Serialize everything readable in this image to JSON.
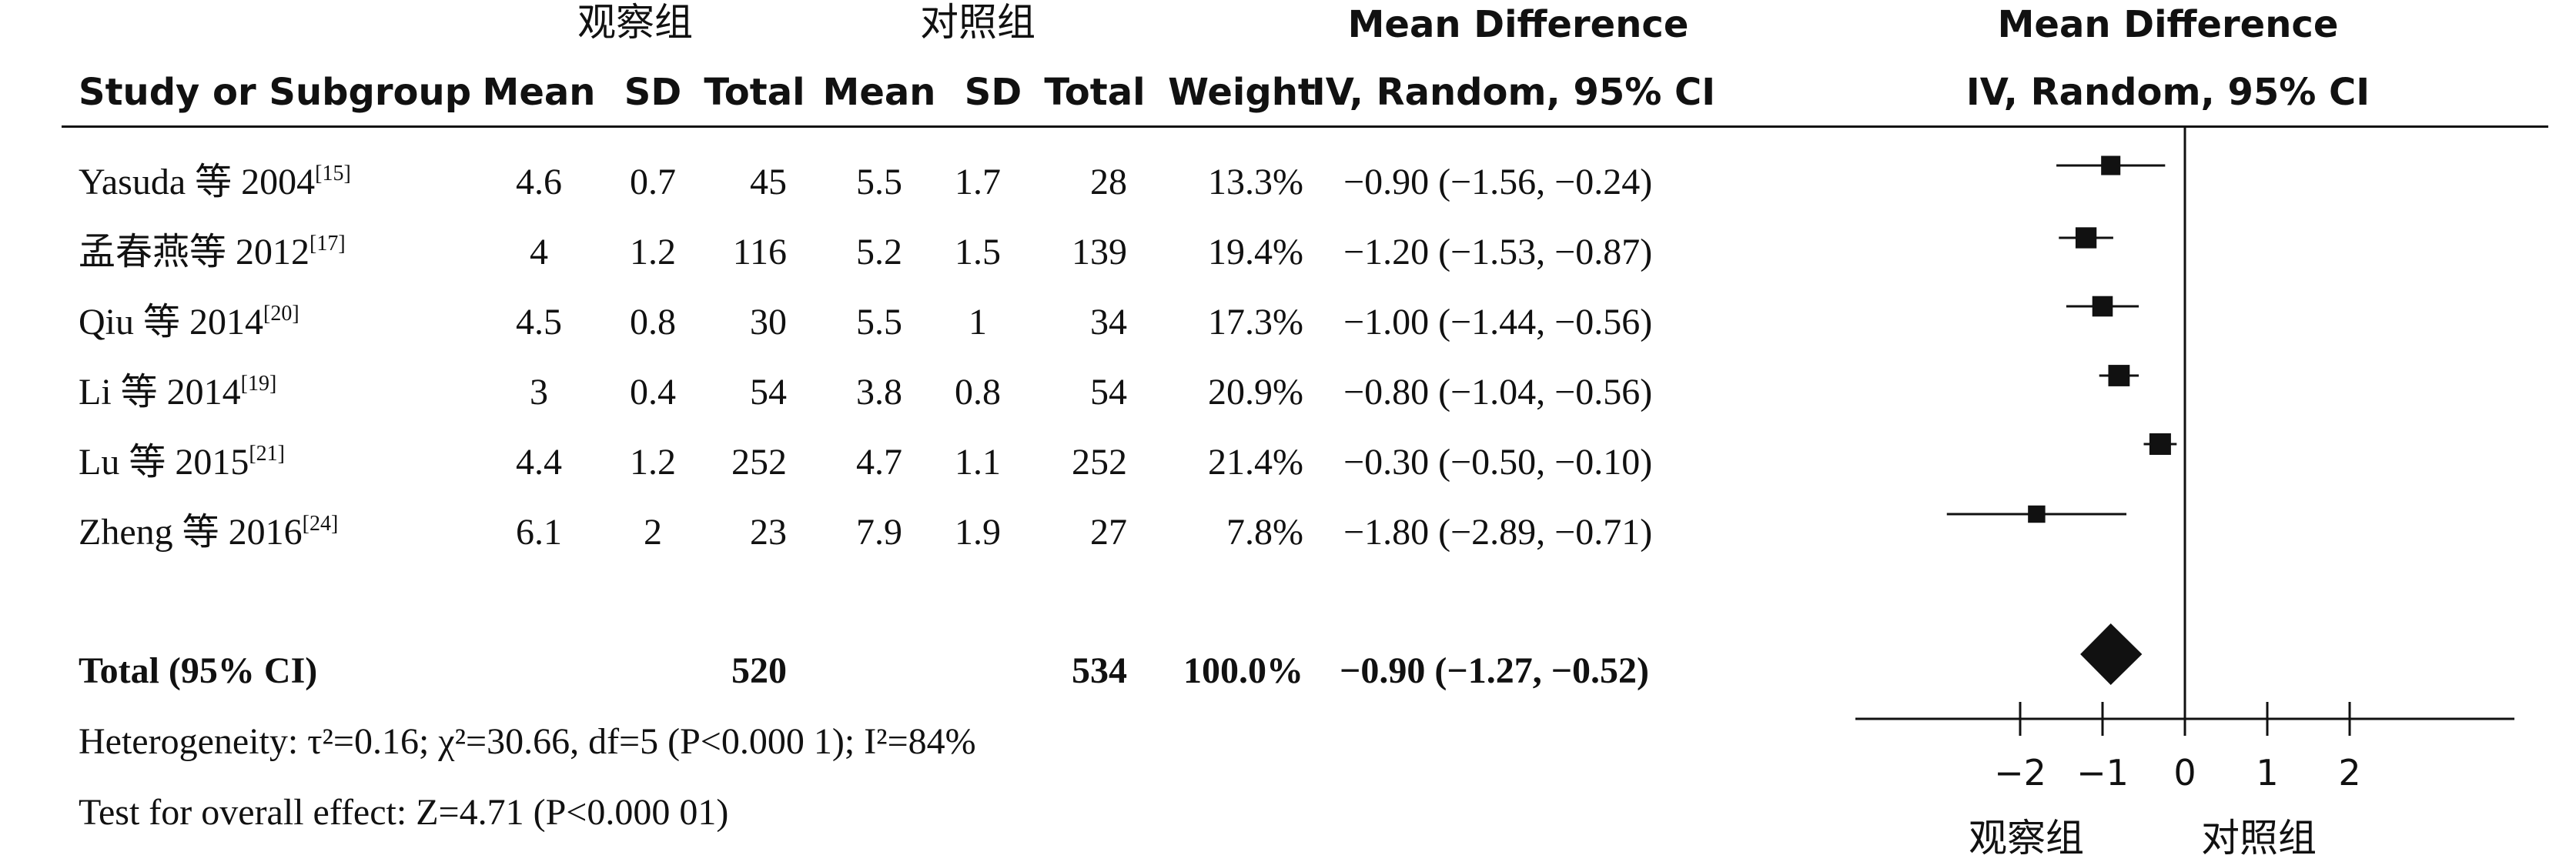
{
  "header": {
    "group1": "观察组",
    "group2": "对照组",
    "md_title": "Mean Difference",
    "plot_title": "Mean Difference",
    "study_col": "Study or Subgroup",
    "mean1": "Mean",
    "sd1": "SD",
    "total1": "Total",
    "mean2": "Mean",
    "sd2": "SD",
    "total2": "Total",
    "weight": "Weight",
    "method": "IV, Random, 95% CI",
    "plot_method": "IV, Random, 95% CI"
  },
  "studies": [
    {
      "name": "Yasuda 等 2004",
      "ref": "[15]",
      "mean1": "4.6",
      "sd1": "0.7",
      "total1": "45",
      "mean2": "5.5",
      "sd2": "1.7",
      "total2": "28",
      "weight": "13.3%",
      "ci": "−0.90 (−1.56, −0.24)"
    },
    {
      "name": "孟春燕等 2012",
      "ref": "[17]",
      "mean1": "4",
      "sd1": "1.2",
      "total1": "116",
      "mean2": "5.2",
      "sd2": "1.5",
      "total2": "139",
      "weight": "19.4%",
      "ci": "−1.20 (−1.53, −0.87)"
    },
    {
      "name": "Qiu 等 2014",
      "ref": "[20]",
      "mean1": "4.5",
      "sd1": "0.8",
      "total1": "30",
      "mean2": "5.5",
      "sd2": "1",
      "total2": "34",
      "weight": "17.3%",
      "ci": "−1.00 (−1.44, −0.56)"
    },
    {
      "name": "Li 等 2014",
      "ref": "[19]",
      "mean1": "3",
      "sd1": "0.4",
      "total1": "54",
      "mean2": "3.8",
      "sd2": "0.8",
      "total2": "54",
      "weight": "20.9%",
      "ci": "−0.80 (−1.04, −0.56)"
    },
    {
      "name": "Lu 等 2015",
      "ref": "[21]",
      "mean1": "4.4",
      "sd1": "1.2",
      "total1": "252",
      "mean2": "4.7",
      "sd2": "1.1",
      "total2": "252",
      "weight": "21.4%",
      "ci": "−0.30 (−0.50, −0.10)"
    },
    {
      "name": "Zheng 等 2016",
      "ref": "[24]",
      "mean1": "6.1",
      "sd1": "2",
      "total1": "23",
      "mean2": "7.9",
      "sd2": "1.9",
      "total2": "27",
      "weight": "7.8%",
      "ci": "−1.80 (−2.89, −0.71)"
    }
  ],
  "total": {
    "label": "Total (95% CI)",
    "total1": "520",
    "total2": "534",
    "weight": "100.0%",
    "ci": "−0.90 (−1.27, −0.52)"
  },
  "footer": {
    "heterogeneity": "Heterogeneity: τ²=0.16; χ²=30.66, df=5 (P<0.000 1); I²=84%",
    "overall": "Test for overall effect: Z=4.71 (P<0.000 01)"
  },
  "axis": {
    "left_label": "观察组",
    "right_label": "对照组"
  },
  "chart_data": {
    "type": "forest",
    "xlim": [
      -4,
      4
    ],
    "ticks": [
      -2,
      -1,
      0,
      1,
      2
    ],
    "tick_labels": [
      "−2",
      "−1",
      "0",
      "1",
      "2"
    ],
    "points": [
      {
        "md": -0.9,
        "lo": -1.56,
        "hi": -0.24,
        "weight": 13.3
      },
      {
        "md": -1.2,
        "lo": -1.53,
        "hi": -0.87,
        "weight": 19.4
      },
      {
        "md": -1.0,
        "lo": -1.44,
        "hi": -0.56,
        "weight": 17.3
      },
      {
        "md": -0.8,
        "lo": -1.04,
        "hi": -0.56,
        "weight": 20.9
      },
      {
        "md": -0.3,
        "lo": -0.5,
        "hi": -0.1,
        "weight": 21.4
      },
      {
        "md": -1.8,
        "lo": -2.89,
        "hi": -0.71,
        "weight": 7.8
      }
    ],
    "overall": {
      "md": -0.9,
      "lo": -1.27,
      "hi": -0.52
    }
  }
}
